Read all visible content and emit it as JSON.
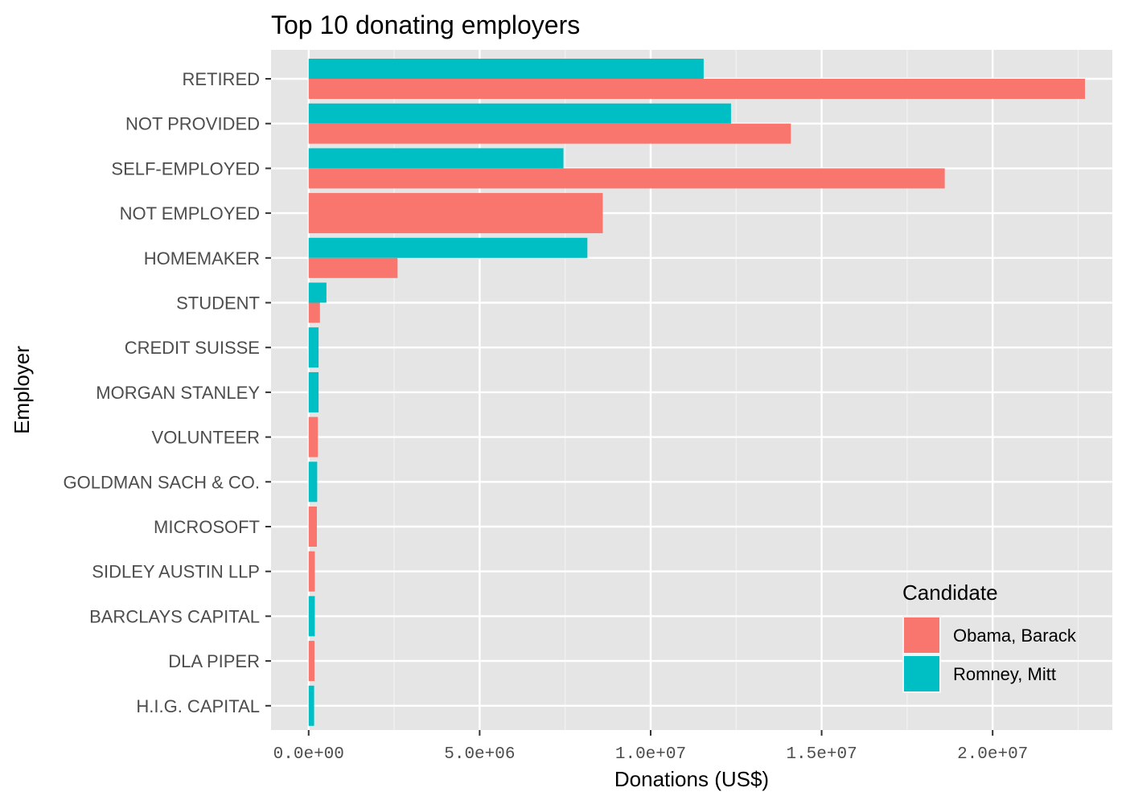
{
  "chart_data": {
    "type": "bar",
    "orientation": "horizontal",
    "title": "Top 10 donating employers",
    "xlabel": "Donations (US$)",
    "ylabel": "Employer",
    "xlim": [
      -1100000,
      23500000
    ],
    "xticks": [
      0,
      5000000,
      10000000,
      15000000,
      20000000
    ],
    "xtick_labels": [
      "0.0e+00",
      "5.0e+06",
      "1.0e+07",
      "1.5e+07",
      "2.0e+07"
    ],
    "categories": [
      "RETIRED",
      "NOT PROVIDED",
      "SELF-EMPLOYED",
      "NOT EMPLOYED",
      "HOMEMAKER",
      "STUDENT",
      "CREDIT SUISSE",
      "MORGAN STANLEY",
      "VOLUNTEER",
      "GOLDMAN SACH & CO.",
      "MICROSOFT",
      "SIDLEY AUSTIN LLP",
      "BARCLAYS CAPITAL",
      "DLA PIPER",
      "H.I.G. CAPITAL"
    ],
    "series": [
      {
        "name": "Obama, Barack",
        "color": "#F8766D",
        "values": [
          22700000,
          14100000,
          18600000,
          8600000,
          2600000,
          330000,
          null,
          null,
          270000,
          null,
          240000,
          180000,
          null,
          170000,
          null
        ]
      },
      {
        "name": "Romney, Mitt",
        "color": "#00BFC4",
        "values": [
          11550000,
          12350000,
          7450000,
          null,
          8150000,
          520000,
          290000,
          290000,
          null,
          250000,
          null,
          null,
          180000,
          null,
          160000
        ]
      }
    ],
    "grid": true,
    "background": "#EBEBEB",
    "legend": {
      "title": "Candidate",
      "position": "bottom-right inside"
    }
  }
}
